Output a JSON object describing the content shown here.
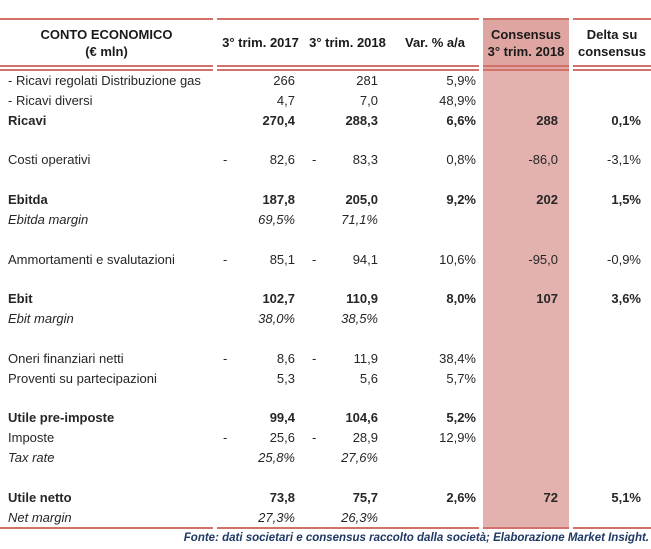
{
  "header": {
    "col_label_line1": "CONTO ECONOMICO",
    "col_label_line2": "(€ mln)",
    "col_2017": "3° trim. 2017",
    "col_2018": "3° trim. 2018",
    "col_var": "Var. % a/a",
    "col_consensus_line1": "Consensus",
    "col_consensus_line2": "3° trim. 2018",
    "col_delta_line1": "Delta su",
    "col_delta_line2": "consensus"
  },
  "rows": [
    {
      "style": "normal",
      "label": "- Ricavi regolati Distribuzione gas",
      "v17": "266",
      "v18": "281",
      "var": "5,9%"
    },
    {
      "style": "normal",
      "label": "- Ricavi diversi",
      "v17": "4,7",
      "v18": "7,0",
      "var": "48,9%"
    },
    {
      "style": "bold",
      "label": "Ricavi",
      "v17": "270,4",
      "v18": "288,3",
      "var": "6,6%",
      "cons": "288",
      "delta": "0,1%"
    },
    {
      "style": "spacer"
    },
    {
      "style": "normal",
      "label": "Costi operativi",
      "m17": "-",
      "v17": "82,6",
      "m18": "-",
      "v18": "83,3",
      "var": "0,8%",
      "cons": "-86,0",
      "delta": "-3,1%"
    },
    {
      "style": "spacer"
    },
    {
      "style": "bold",
      "label": "Ebitda",
      "v17": "187,8",
      "v18": "205,0",
      "var": "9,2%",
      "cons": "202",
      "delta": "1,5%"
    },
    {
      "style": "italic",
      "label": "Ebitda margin",
      "v17": "69,5%",
      "v18": "71,1%"
    },
    {
      "style": "spacer"
    },
    {
      "style": "normal",
      "label": "Ammortamenti e svalutazioni",
      "m17": "-",
      "v17": "85,1",
      "m18": "-",
      "v18": "94,1",
      "var": "10,6%",
      "cons": "-95,0",
      "delta": "-0,9%"
    },
    {
      "style": "spacer"
    },
    {
      "style": "bold",
      "label": "Ebit",
      "v17": "102,7",
      "v18": "110,9",
      "var": "8,0%",
      "cons": "107",
      "delta": "3,6%"
    },
    {
      "style": "italic",
      "label": "Ebit margin",
      "v17": "38,0%",
      "v18": "38,5%"
    },
    {
      "style": "spacer"
    },
    {
      "style": "normal",
      "label": "Oneri finanziari netti",
      "m17": "-",
      "v17": "8,6",
      "m18": "-",
      "v18": "11,9",
      "var": "38,4%"
    },
    {
      "style": "normal",
      "label": "Proventi su partecipazioni",
      "v17": "5,3",
      "v18": "5,6",
      "var": "5,7%"
    },
    {
      "style": "spacer"
    },
    {
      "style": "bold",
      "label": "Utile pre-imposte",
      "v17": "99,4",
      "v18": "104,6",
      "var": "5,2%"
    },
    {
      "style": "normal",
      "label": "Imposte",
      "m17": "-",
      "v17": "25,6",
      "m18": "-",
      "v18": "28,9",
      "var": "12,9%"
    },
    {
      "style": "italic",
      "label": "Tax rate",
      "v17": "25,8%",
      "v18": "27,6%"
    },
    {
      "style": "spacer"
    },
    {
      "style": "bold",
      "label": "Utile netto",
      "v17": "73,8",
      "v18": "75,7",
      "var": "2,6%",
      "cons": "72",
      "delta": "5,1%"
    },
    {
      "style": "italic",
      "label": "Net margin",
      "v17": "27,3%",
      "v18": "26,3%"
    }
  ],
  "footer": "Fonte: dati societari e consensus raccolto dalla società; Elaborazione Market Insight.",
  "colors": {
    "accent_border": "#d0716a",
    "consensus_fill_body": "#e3b2ae",
    "consensus_fill_header": "#dfa6a1",
    "footer_text": "#1f3864"
  }
}
